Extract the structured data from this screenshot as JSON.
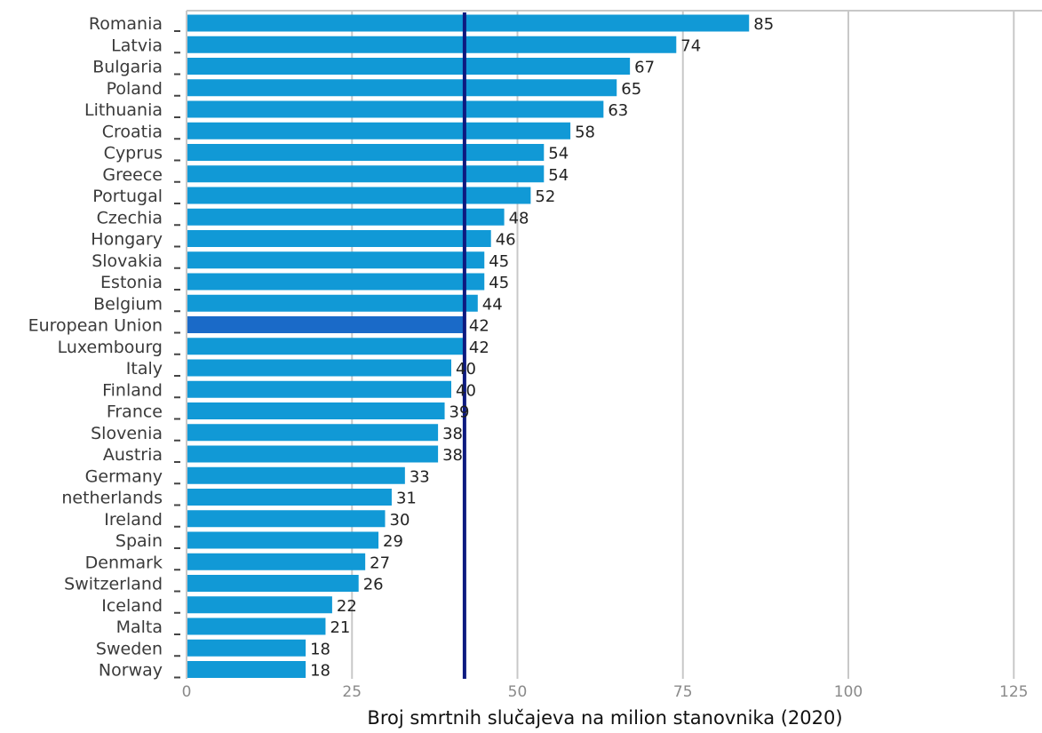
{
  "chart_data": {
    "type": "bar",
    "orientation": "horizontal",
    "categories": [
      "Romania",
      "Latvia",
      "Bulgaria",
      "Poland",
      "Lithuania",
      "Croatia",
      "Cyprus",
      "Greece",
      "Portugal",
      "Czechia",
      "Hongary",
      "Slovakia",
      "Estonia",
      "Belgium",
      "European Union",
      "Luxembourg",
      "Italy",
      "Finland",
      "France",
      "Slovenia",
      "Austria",
      "Germany",
      "netherlands",
      "Ireland",
      "Spain",
      "Denmark",
      "Switzerland",
      "Iceland",
      "Malta",
      "Sweden",
      "Norway"
    ],
    "values": [
      85,
      74,
      67,
      65,
      63,
      58,
      54,
      54,
      52,
      48,
      46,
      45,
      45,
      44,
      42,
      42,
      40,
      40,
      39,
      38,
      38,
      33,
      31,
      30,
      29,
      27,
      26,
      22,
      21,
      18,
      18
    ],
    "value_labels": [
      "85",
      "74",
      "67",
      "65",
      "63",
      "58",
      "54",
      "54",
      "52",
      "48",
      "46",
      "45",
      "45",
      "44",
      "42",
      "42",
      "40",
      "40",
      "39",
      "38",
      "38",
      "33",
      "31",
      "30",
      "29",
      "27",
      "26",
      "22",
      "21",
      "18",
      "18"
    ],
    "highlight_category": "European Union",
    "reference_line": {
      "value": 42
    },
    "title": "",
    "xlabel": "Broj smrtnih slučajeva na milion stanovnika (2020)",
    "ylabel": "",
    "xlim": [
      0,
      130
    ],
    "xticks": [
      0,
      25,
      50,
      75,
      100,
      125
    ],
    "xtick_labels": [
      "0",
      "25",
      "50",
      "75",
      "100",
      "125"
    ],
    "grid": "vertical",
    "legend": "none",
    "colors": {
      "bar": "#1199d6",
      "highlight_bar": "#1a6ac8",
      "reference_line": "#0d1a80",
      "grid": "#c8c8c8"
    }
  }
}
